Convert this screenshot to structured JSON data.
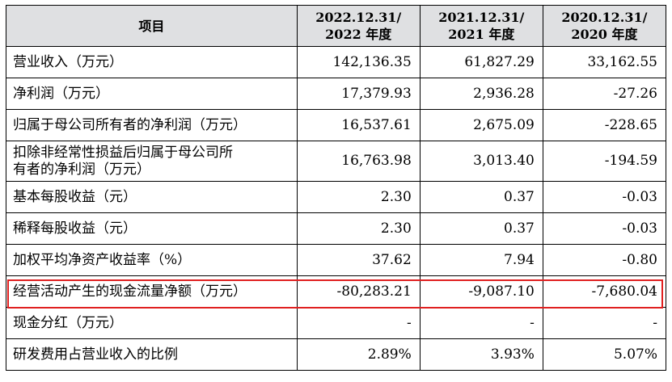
{
  "table": {
    "headers": {
      "item": "项目",
      "col1_line1": "2022.12.31/",
      "col1_line2": "2022 年度",
      "col2_line1": "2021.12.31/",
      "col2_line2": "2021 年度",
      "col3_line1": "2020.12.31/",
      "col3_line2": "2020 年度"
    },
    "rows": [
      {
        "label": "营业收入（万元）",
        "v2022": "142,136.35",
        "v2021": "61,827.29",
        "v2020": "33,162.55"
      },
      {
        "label": "净利润（万元）",
        "v2022": "17,379.93",
        "v2021": "2,936.28",
        "v2020": "-27.26"
      },
      {
        "label": "归属于母公司所有者的净利润（万元）",
        "v2022": "16,537.61",
        "v2021": "2,675.09",
        "v2020": "-228.65"
      },
      {
        "label_line1": "扣除非经常性损益后归属于母公司所",
        "label_line2": "有者的净利润（万元）",
        "v2022": "16,763.98",
        "v2021": "3,013.40",
        "v2020": "-194.59"
      },
      {
        "label": "基本每股收益（元）",
        "v2022": "2.30",
        "v2021": "0.37",
        "v2020": "-0.03"
      },
      {
        "label": "稀释每股收益（元）",
        "v2022": "2.30",
        "v2021": "0.37",
        "v2020": "-0.03"
      },
      {
        "label": "加权平均净资产收益率（%）",
        "v2022": "37.62",
        "v2021": "7.94",
        "v2020": "-0.80"
      },
      {
        "label": "经营活动产生的现金流量净额（万元）",
        "v2022": "-80,283.21",
        "v2021": "-9,087.10",
        "v2020": "-7,680.04"
      },
      {
        "label": "现金分红（万元）",
        "v2022": "-",
        "v2021": "-",
        "v2020": "-"
      },
      {
        "label": "研发费用占营业收入的比例",
        "v2022": "2.89%",
        "v2021": "3.93%",
        "v2020": "5.07%"
      }
    ]
  },
  "colors": {
    "header_bg": "#dfe0e2",
    "highlight_border": "#e02020"
  }
}
